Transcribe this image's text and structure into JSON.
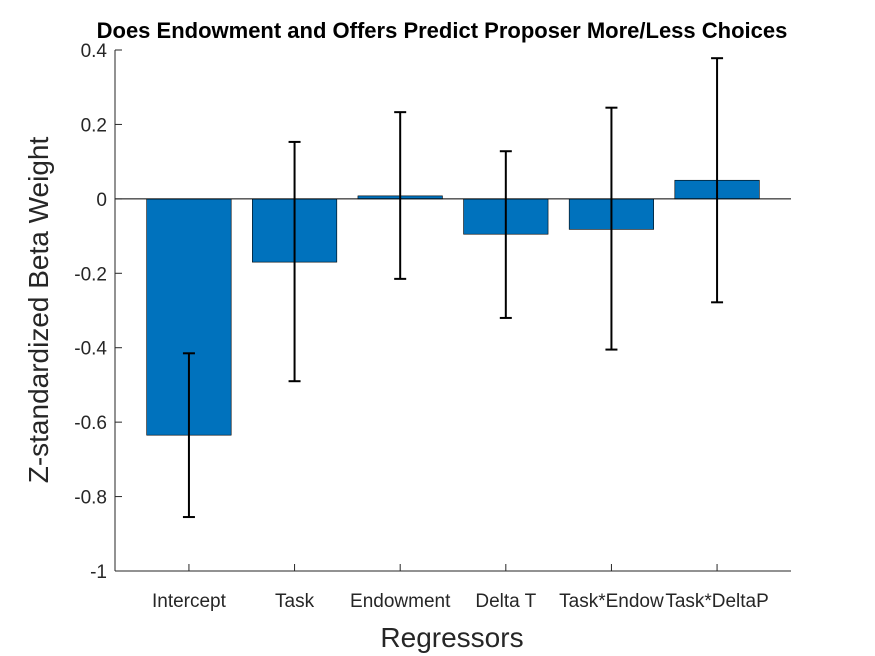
{
  "chart_data": {
    "type": "bar",
    "title": "Does Endowment and Offers Predict Proposer More/Less Choices",
    "xlabel": "Regressors",
    "ylabel": "Z-standardized Beta Weight",
    "categories": [
      "Intercept",
      "Task",
      "Endowment",
      "Delta T",
      "Task*Endow",
      "Task*DeltaP"
    ],
    "values": [
      -0.635,
      -0.17,
      0.008,
      -0.095,
      -0.082,
      0.05
    ],
    "error_low": [
      -0.855,
      -0.49,
      -0.215,
      -0.32,
      -0.405,
      -0.278
    ],
    "error_high": [
      -0.415,
      0.153,
      0.233,
      0.128,
      0.245,
      0.378
    ],
    "ylim": [
      -1,
      0.4
    ],
    "yticks": [
      -1,
      -0.8,
      -0.6,
      -0.4,
      -0.2,
      0,
      0.2,
      0.4
    ],
    "yticklabels": [
      "-1",
      "-0.8",
      "-0.6",
      "-0.4",
      "-0.2",
      "0",
      "0.2",
      "0.4"
    ],
    "bar_color": "#0072BD",
    "grid": false,
    "legend": "none"
  }
}
